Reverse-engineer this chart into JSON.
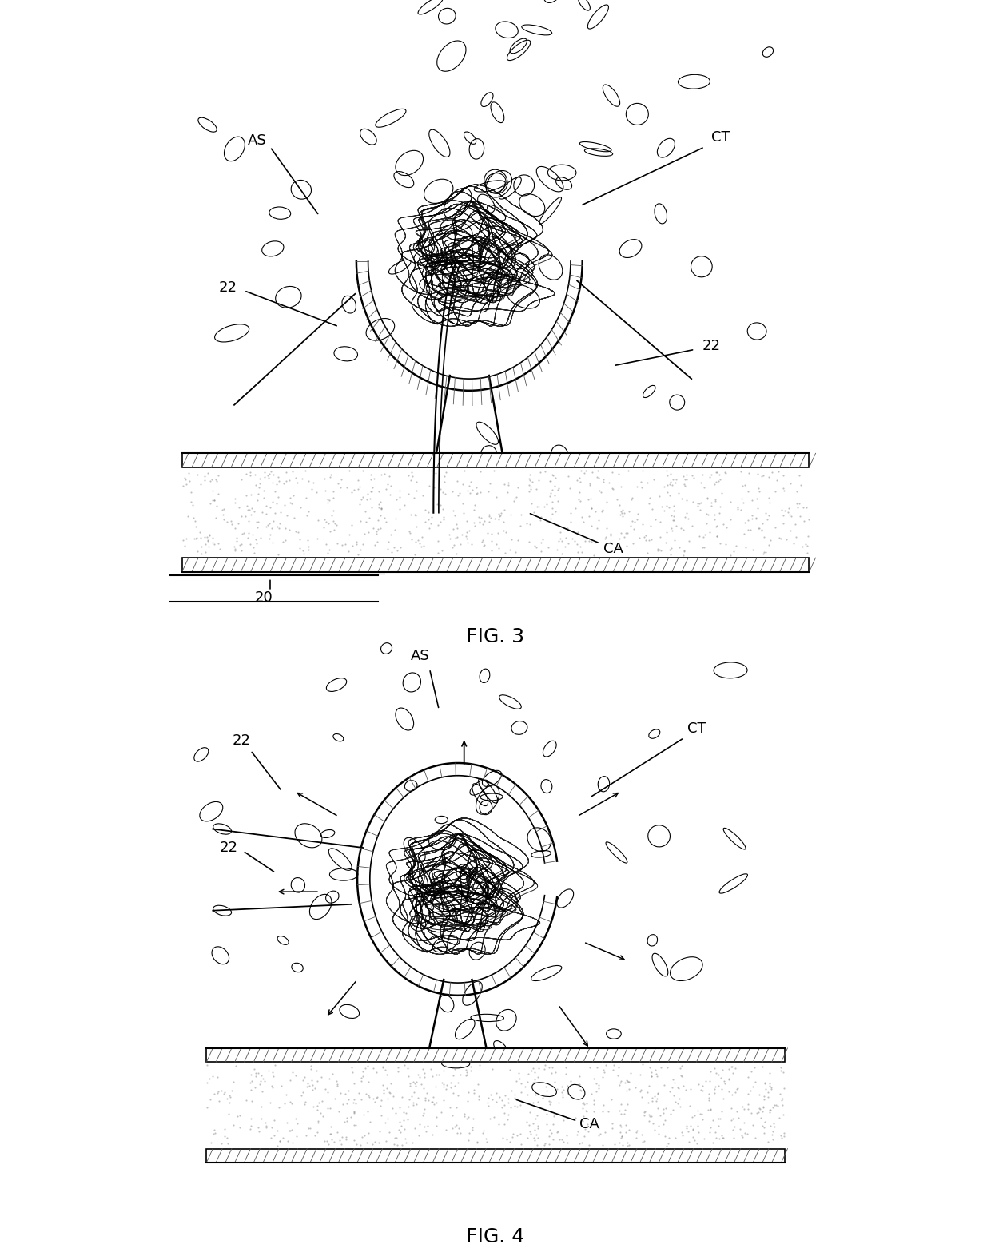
{
  "fig_width": 12.4,
  "fig_height": 15.72,
  "dpi": 100,
  "bg_color": "#ffffff",
  "line_color": "#000000",
  "fig3_title": "FIG. 3",
  "fig4_title": "FIG. 4",
  "labels": {
    "AS": "AS",
    "CT": "CT",
    "CA": "CA",
    "22": "22",
    "20": "20"
  }
}
